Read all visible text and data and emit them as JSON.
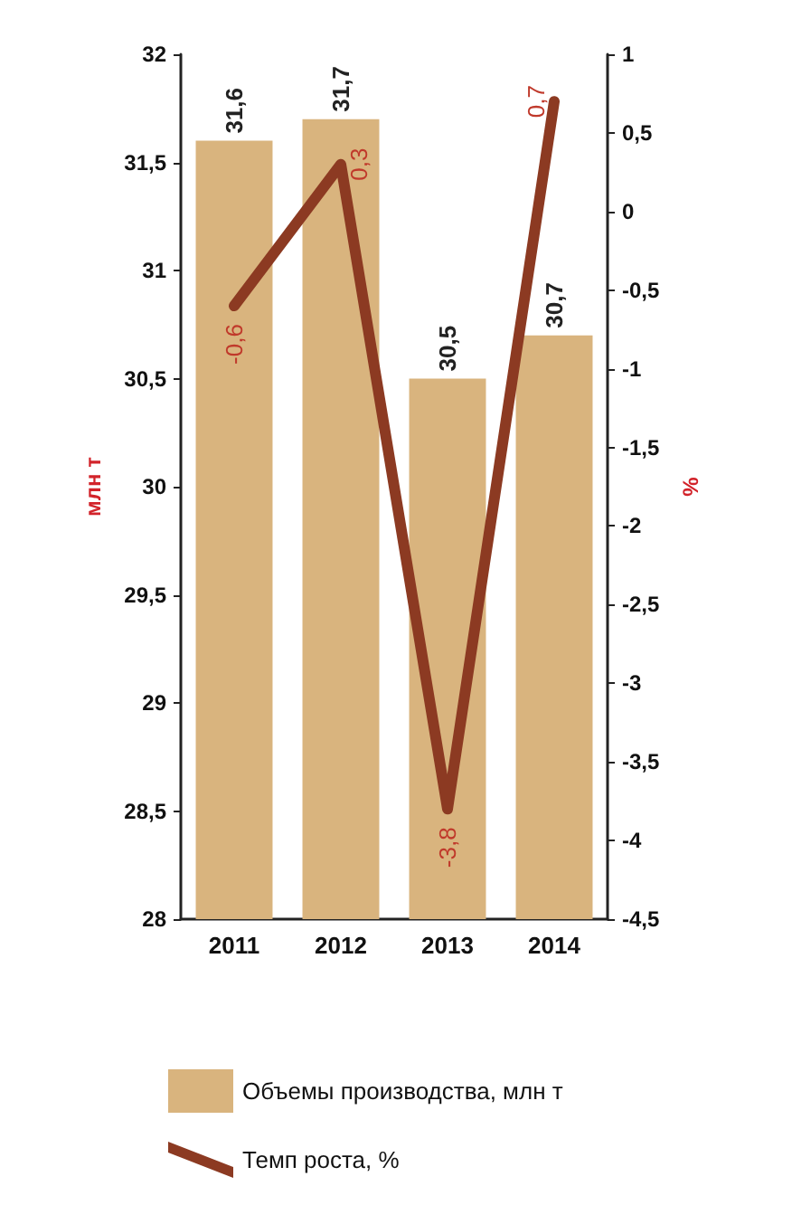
{
  "chart_data": {
    "type": "bar",
    "categories": [
      "2011",
      "2012",
      "2013",
      "2014"
    ],
    "series": [
      {
        "name": "Объемы производства, млн т",
        "color": "#d9b47e",
        "values": [
          31.6,
          31.7,
          30.5,
          30.7
        ],
        "value_labels": [
          "31,6",
          "31,7",
          "30,5",
          "30,7"
        ]
      },
      {
        "name": "Темп роста, %",
        "type": "line",
        "axis": "y2",
        "color": "#8c3a22",
        "values": [
          -0.6,
          0.3,
          -3.8,
          0.7
        ],
        "value_labels": [
          "-0,6",
          "0,3",
          "-3,8",
          "0,7"
        ]
      }
    ],
    "ylabel": "млн т",
    "y2label": "%",
    "ylim": [
      28,
      32
    ],
    "yticks": [
      {
        "value": 28,
        "label": "28"
      },
      {
        "value": 28.5,
        "label": "28,5"
      },
      {
        "value": 29,
        "label": "29"
      },
      {
        "value": 29.5,
        "label": "29,5"
      },
      {
        "value": 30,
        "label": "30"
      },
      {
        "value": 30.5,
        "label": "30,5"
      },
      {
        "value": 31,
        "label": "31"
      },
      {
        "value": 31.5,
        "label": "31,5"
      },
      {
        "value": 32,
        "label": "32"
      }
    ],
    "y2lim": [
      -4.5,
      1
    ],
    "y2ticks": [
      {
        "value": -4.5,
        "label": "-4,5"
      },
      {
        "value": -4,
        "label": "-4"
      },
      {
        "value": -3.5,
        "label": "-3,5"
      },
      {
        "value": -3,
        "label": "-3"
      },
      {
        "value": -2.5,
        "label": "-2,5"
      },
      {
        "value": -2,
        "label": "-2"
      },
      {
        "value": -1.5,
        "label": "-1,5"
      },
      {
        "value": -1,
        "label": "-1"
      },
      {
        "value": -0.5,
        "label": "-0,5"
      },
      {
        "value": 0,
        "label": "0"
      },
      {
        "value": 0.5,
        "label": "0,5"
      },
      {
        "value": 1,
        "label": "1"
      }
    ],
    "grid": false,
    "legend": "bottom",
    "marker": "none",
    "line_style": "solid"
  }
}
